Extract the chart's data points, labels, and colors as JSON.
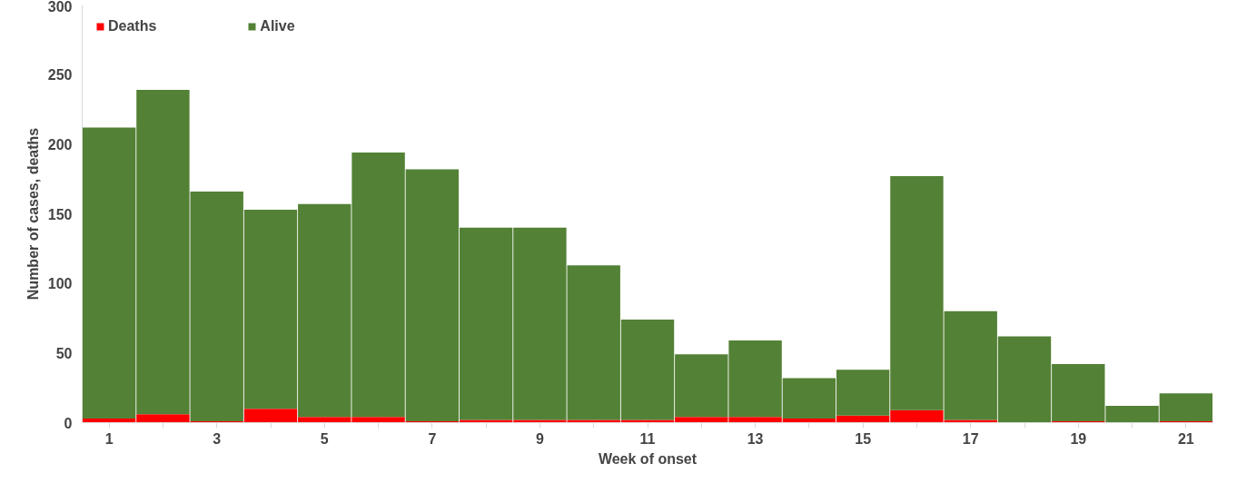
{
  "chart_data": {
    "type": "bar",
    "stacked": true,
    "xlabel": "Week of onset",
    "ylabel": "Number of cases, deaths",
    "categories": [
      "1",
      null,
      "3",
      null,
      "5",
      null,
      "7",
      null,
      "9",
      null,
      "11",
      null,
      "13",
      null,
      "15",
      null,
      "17",
      null,
      "19",
      null,
      "21"
    ],
    "series": [
      {
        "name": "Deaths",
        "color": "#ff0000",
        "values": [
          3,
          6,
          1,
          10,
          4,
          4,
          1,
          2,
          2,
          2,
          2,
          4,
          4,
          3,
          5,
          9,
          2,
          0,
          1,
          0,
          1
        ]
      },
      {
        "name": "Alive",
        "color": "#538135",
        "values": [
          209,
          233,
          165,
          143,
          153,
          190,
          181,
          138,
          138,
          111,
          72,
          45,
          55,
          29,
          33,
          168,
          78,
          62,
          41,
          12,
          20
        ]
      }
    ],
    "ylim": [
      0,
      300
    ],
    "yticks": [
      0,
      50,
      100,
      150,
      200,
      250,
      300
    ],
    "grid": false,
    "legend": "top left"
  }
}
